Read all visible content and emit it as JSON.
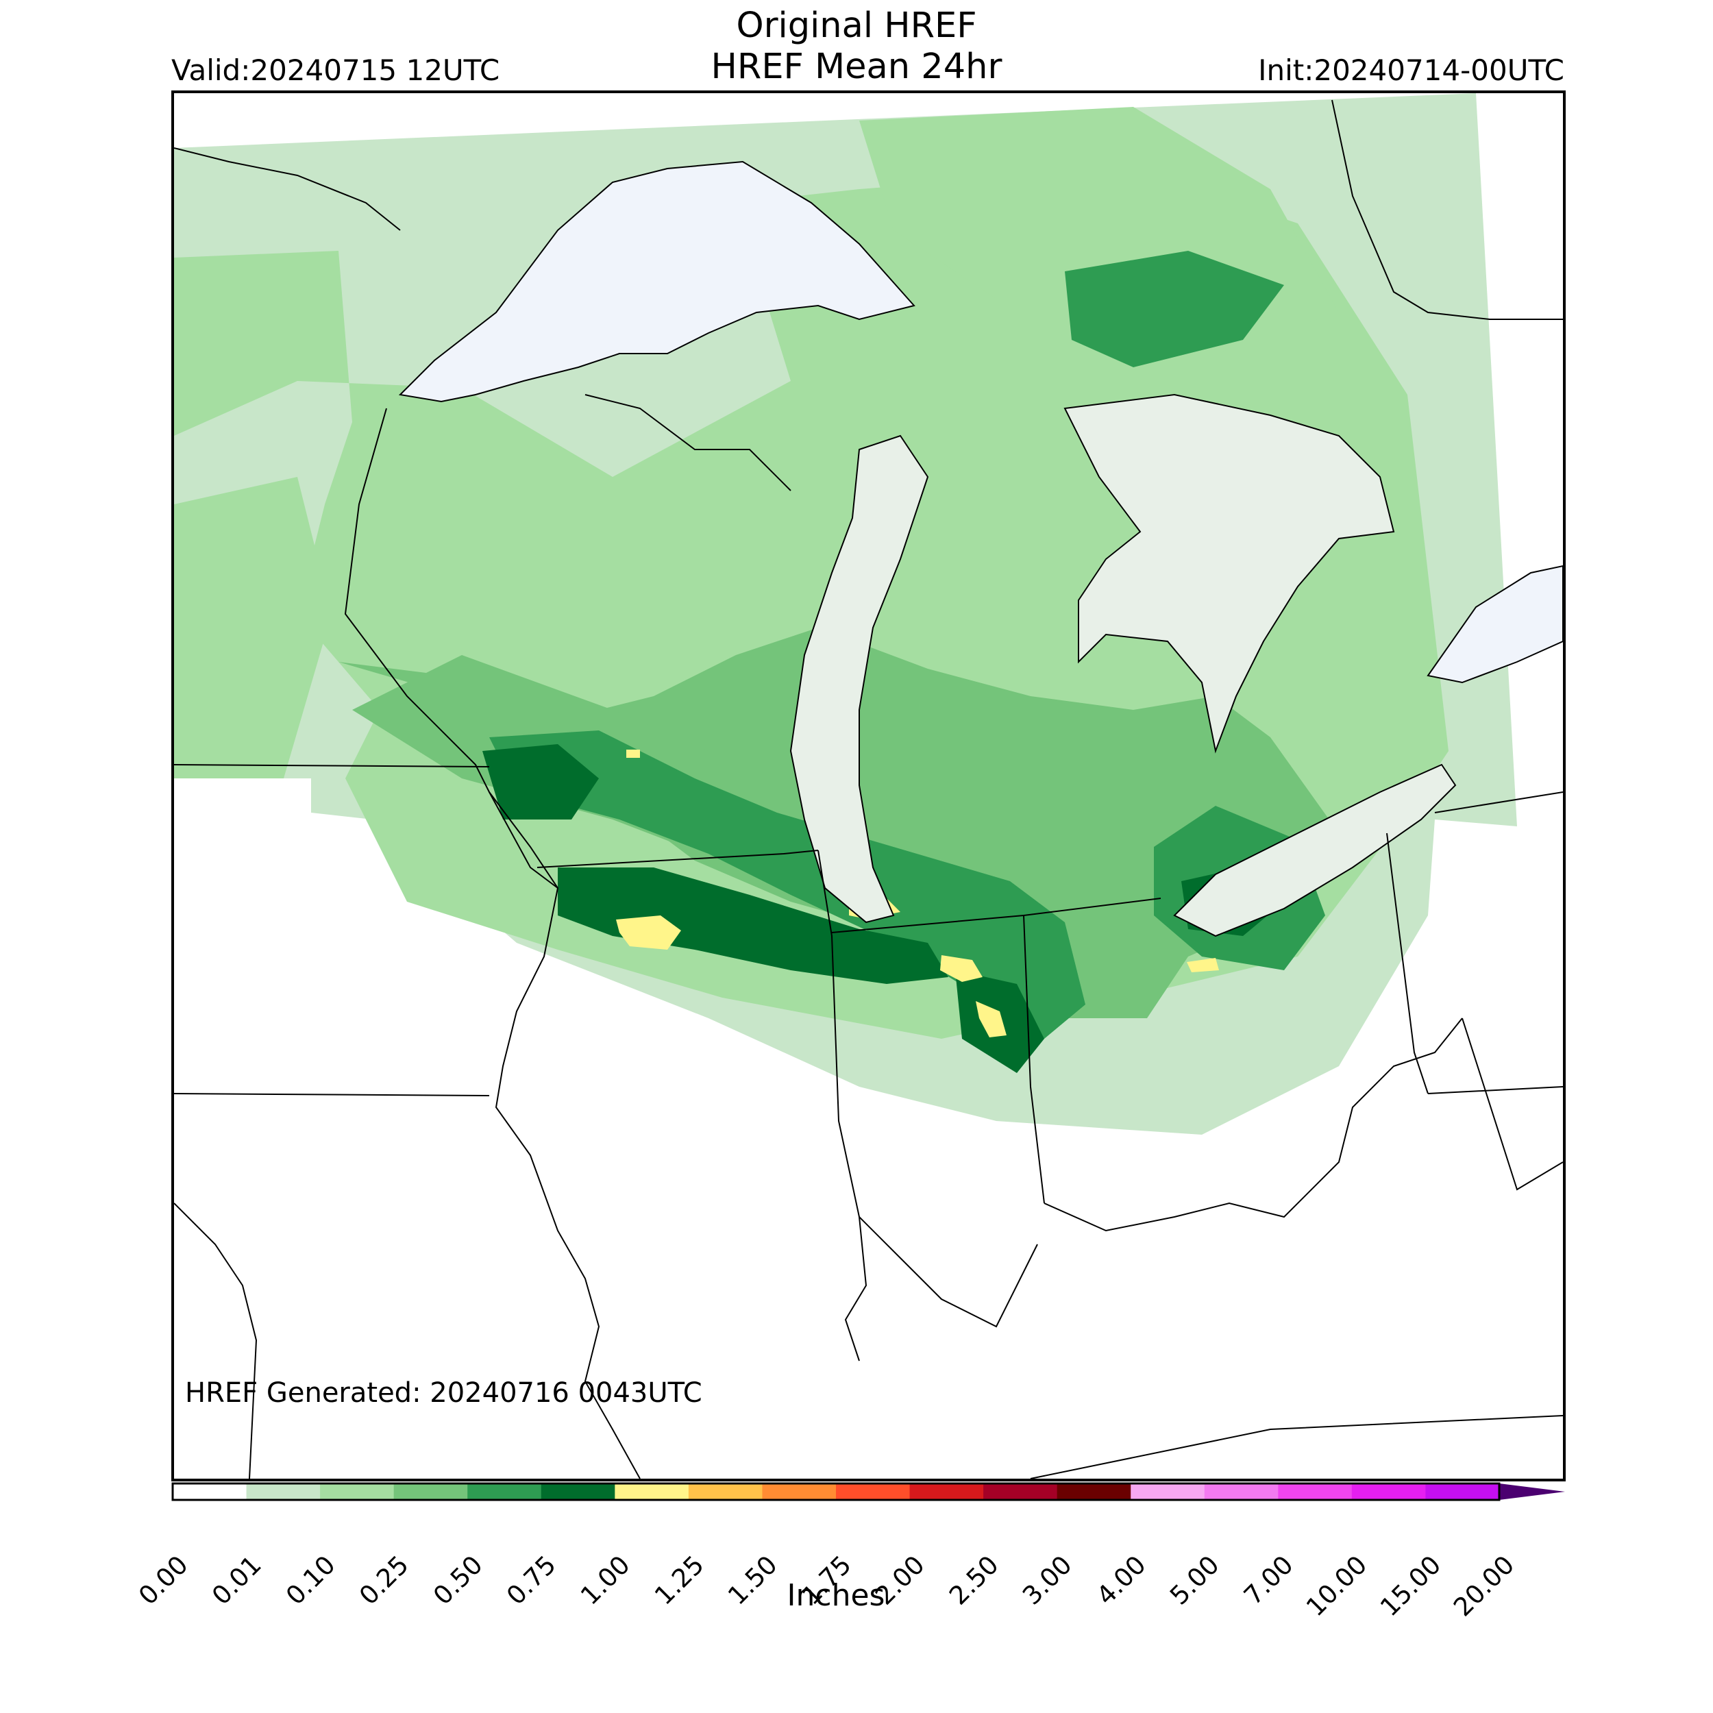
{
  "header": {
    "title_line1": "Original HREF",
    "title_line2": "HREF Mean 24hr",
    "valid": "Valid:20240715 12UTC",
    "init": "Init:20240714-00UTC"
  },
  "footer": {
    "generated": "HREF Generated: 20240716 0043UTC"
  },
  "colorbar": {
    "label": "Inches",
    "ticks": [
      "0.00",
      "0.01",
      "0.10",
      "0.25",
      "0.50",
      "0.75",
      "1.00",
      "1.25",
      "1.50",
      "1.75",
      "2.00",
      "2.50",
      "3.00",
      "4.00",
      "5.00",
      "7.00",
      "10.00",
      "15.00",
      "20.00"
    ],
    "colors": [
      "#ffffff",
      "#c8e6c9",
      "#a5dea1",
      "#74c47a",
      "#2e9c52",
      "#006d2c",
      "#fff58a",
      "#ffc24a",
      "#ff8c33",
      "#ff4e2a",
      "#d7191c",
      "#a50026",
      "#6b0000",
      "#f7a8f2",
      "#f37af0",
      "#f045ef",
      "#e51ff0",
      "#c50ff0",
      "#8a00d4"
    ],
    "extend_color": "#4b0070"
  },
  "map": {
    "water_color": "#f0f4fb",
    "boundary_color": "#000000",
    "precip_levels": {
      "trace": "#c8e6c9",
      "light": "#a5dea1",
      "moderate": "#74c47a",
      "heavy": "#2e9c52",
      "very_heavy": "#006d2c",
      "extreme": "#fff58a"
    }
  }
}
